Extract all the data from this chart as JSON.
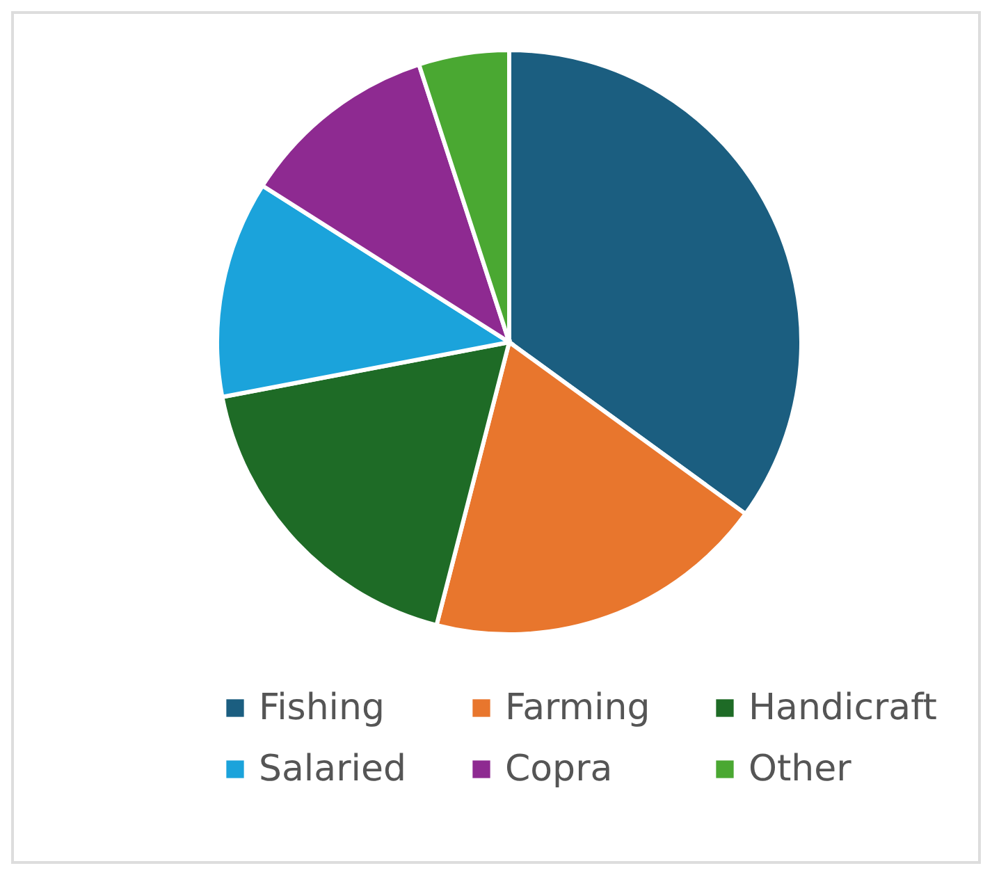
{
  "chart_data": {
    "type": "pie",
    "categories": [
      "Fishing",
      "Farming",
      "Handicraft",
      "Salaried",
      "Copra",
      "Other"
    ],
    "values": [
      35,
      19,
      18,
      12,
      11,
      5
    ],
    "colors": [
      "#1b5e80",
      "#e8762d",
      "#1e6b26",
      "#1ba3db",
      "#8e2a91",
      "#4aa832"
    ],
    "legend": "bottom"
  }
}
